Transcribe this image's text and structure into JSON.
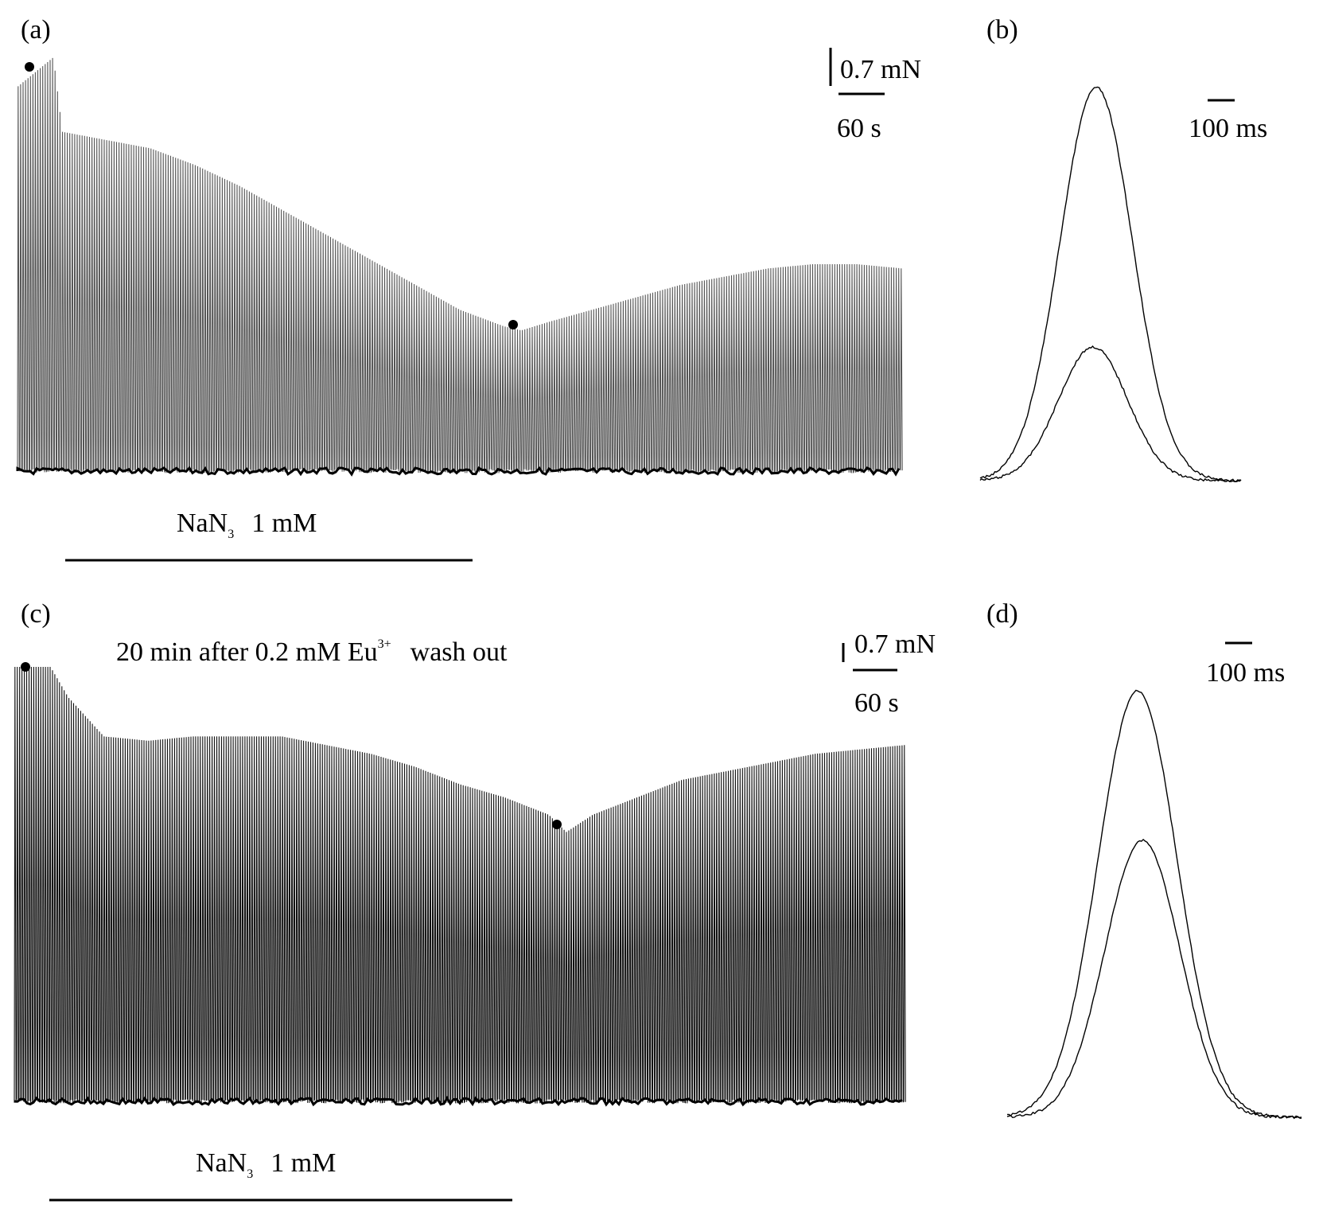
{
  "panels": {
    "a": {
      "label": "(a)"
    },
    "b": {
      "label": "(b)"
    },
    "c": {
      "label": "(c)"
    },
    "d": {
      "label": "(d)"
    }
  },
  "scalebars": {
    "a": {
      "force": "0.7 mN",
      "time": "60 s"
    },
    "b": {
      "time": "100 ms"
    },
    "c": {
      "force": "0.7 mN",
      "time": "60 s"
    },
    "d": {
      "time": "100 ms"
    }
  },
  "treatment": {
    "a": {
      "drug": "NaN",
      "subscript": "3",
      "conc": "1 mM"
    },
    "c": {
      "drug": "NaN",
      "subscript": "3",
      "conc": "1 mM"
    }
  },
  "annotation_c": {
    "prefix": "20 min after 0.2  mM Eu",
    "superscript": "3+",
    "suffix": "wash out"
  },
  "chart_data": [
    {
      "type": "line",
      "panel": "a",
      "description_units": "relative twitch amplitude vs relative time",
      "envelope": {
        "x": [
          0,
          0.04,
          0.05,
          0.1,
          0.15,
          0.2,
          0.25,
          0.3,
          0.35,
          0.4,
          0.45,
          0.5,
          0.55,
          0.57,
          0.6,
          0.65,
          0.7,
          0.75,
          0.8,
          0.85,
          0.9,
          0.95,
          1.0
        ],
        "y": [
          0.93,
          1.0,
          0.82,
          0.8,
          0.78,
          0.74,
          0.69,
          0.63,
          0.57,
          0.51,
          0.45,
          0.39,
          0.35,
          0.34,
          0.36,
          0.39,
          0.42,
          0.45,
          0.47,
          0.49,
          0.5,
          0.5,
          0.49
        ]
      },
      "markers": [
        {
          "x": 0.015
        },
        {
          "x": 0.56
        }
      ]
    },
    {
      "type": "line",
      "panel": "b",
      "series": [
        {
          "name": "",
          "peak": 1.0
        },
        {
          "name": "",
          "peak": 0.34
        }
      ]
    },
    {
      "type": "line",
      "panel": "c",
      "envelope": {
        "x": [
          0,
          0.04,
          0.06,
          0.1,
          0.15,
          0.2,
          0.25,
          0.3,
          0.35,
          0.4,
          0.45,
          0.5,
          0.55,
          0.6,
          0.62,
          0.65,
          0.7,
          0.75,
          0.8,
          0.85,
          0.9,
          0.95,
          1.0
        ],
        "y": [
          1.0,
          1.0,
          0.93,
          0.84,
          0.83,
          0.84,
          0.84,
          0.84,
          0.82,
          0.8,
          0.77,
          0.73,
          0.7,
          0.66,
          0.62,
          0.66,
          0.7,
          0.74,
          0.76,
          0.78,
          0.8,
          0.81,
          0.82
        ]
      },
      "markers": [
        {
          "x": 0.012
        },
        {
          "x": 0.61
        }
      ]
    },
    {
      "type": "line",
      "panel": "d",
      "series": [
        {
          "name": "",
          "peak": 1.0
        },
        {
          "name": "",
          "peak": 0.65
        }
      ]
    }
  ]
}
